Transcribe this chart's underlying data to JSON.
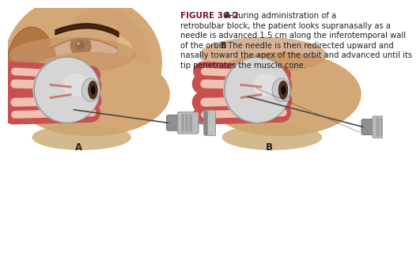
{
  "figure_label": "FIGURE 36–2",
  "label_color": "#7B1045",
  "bg_color": "#ffffff",
  "skin_light": "#D4A876",
  "skin_mid": "#C8956A",
  "skin_dark": "#B07840",
  "muscle_red": "#C85050",
  "muscle_pink": "#E8A090",
  "muscle_light": "#F0C0B0",
  "sclera_color": "#D8D8D8",
  "cornea_color": "#C0C8C8",
  "iris_color": "#5A3018",
  "pupil_color": "#111111",
  "needle_color": "#606060",
  "syringe_dark": "#888888",
  "syringe_light": "#BBBBBB",
  "bone_color": "#C8A870",
  "text_color": "#222222",
  "caption_fs": 7.2,
  "label_fs": 8.5,
  "caption_line1": "During administration of a",
  "caption_line2": "retrobulbar block, the patient looks supranasally as a",
  "caption_line3": "needle is advanced 1.5 cm along the inferotemporal wall",
  "caption_line4": "of the orbit. ",
  "caption_line5": "The needle is then redirected upward and",
  "caption_line6": "nasally toward the apex of the orbit and advanced until its",
  "caption_line7": "tip penetrates the muscle cone."
}
